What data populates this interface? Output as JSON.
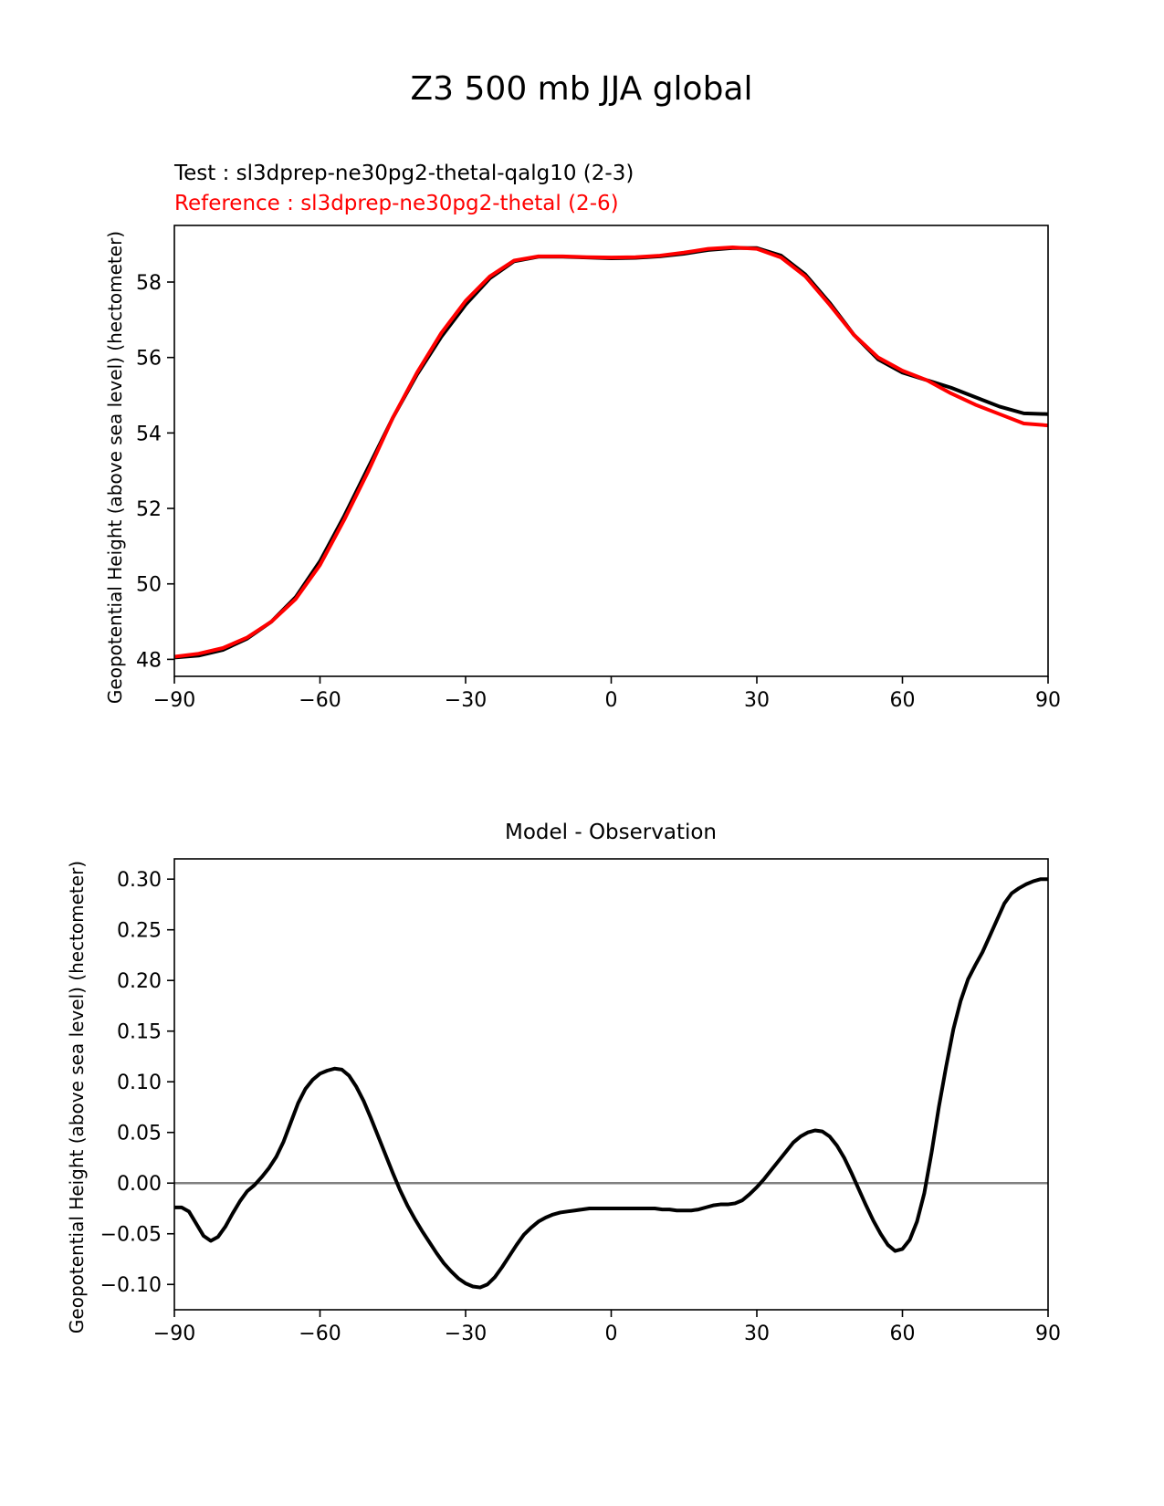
{
  "figure_title": "Z3 500 mb JJA global",
  "chart_data": [
    {
      "type": "line",
      "test_label": "Test : sl3dprep-ne30pg2-thetal-qalg10 (2-3)",
      "reference_label": "Reference : sl3dprep-ne30pg2-thetal (2-6)",
      "xlabel": "",
      "ylabel": "Geopotential Height (above sea level) (hectometer)",
      "xlim": [
        -90,
        90
      ],
      "ylim": [
        47.55,
        59.5
      ],
      "xticks": [
        -90,
        -60,
        -30,
        0,
        30,
        60,
        90
      ],
      "xtick_labels": [
        "−90",
        "−60",
        "−30",
        "0",
        "30",
        "60",
        "90"
      ],
      "yticks": [
        48,
        50,
        52,
        54,
        56,
        58
      ],
      "ytick_labels": [
        "48",
        "50",
        "52",
        "54",
        "56",
        "58"
      ],
      "grid": false,
      "series": [
        {
          "name": "Test",
          "color": "#000000",
          "x": [
            -90,
            -85,
            -80,
            -75,
            -70,
            -65,
            -60,
            -55,
            -50,
            -45,
            -40,
            -35,
            -30,
            -25,
            -20,
            -15,
            -10,
            -5,
            0,
            5,
            10,
            15,
            20,
            25,
            30,
            35,
            40,
            45,
            50,
            55,
            60,
            65,
            70,
            75,
            80,
            85,
            90
          ],
          "y": [
            48.05,
            48.1,
            48.25,
            48.55,
            49.0,
            49.65,
            50.6,
            51.8,
            53.1,
            54.4,
            55.55,
            56.55,
            57.4,
            58.1,
            58.55,
            58.67,
            58.67,
            58.65,
            58.63,
            58.64,
            58.68,
            58.75,
            58.85,
            58.9,
            58.9,
            58.7,
            58.2,
            57.45,
            56.6,
            55.95,
            55.6,
            55.4,
            55.2,
            54.95,
            54.7,
            54.52,
            54.5
          ]
        },
        {
          "name": "Reference",
          "color": "#ff0000",
          "x": [
            -90,
            -85,
            -80,
            -75,
            -70,
            -65,
            -60,
            -55,
            -50,
            -45,
            -40,
            -35,
            -30,
            -25,
            -20,
            -15,
            -10,
            -5,
            0,
            5,
            10,
            15,
            20,
            25,
            30,
            35,
            40,
            45,
            50,
            55,
            60,
            65,
            70,
            75,
            80,
            85,
            90
          ],
          "y": [
            48.07,
            48.15,
            48.3,
            48.58,
            49.0,
            49.6,
            50.5,
            51.7,
            53.0,
            54.4,
            55.6,
            56.65,
            57.5,
            58.15,
            58.57,
            58.68,
            58.68,
            58.66,
            58.65,
            58.66,
            58.7,
            58.78,
            58.88,
            58.92,
            58.88,
            58.65,
            58.15,
            57.4,
            56.6,
            56.0,
            55.65,
            55.4,
            55.05,
            54.75,
            54.5,
            54.25,
            54.2
          ]
        }
      ]
    },
    {
      "type": "line",
      "title": "Model - Observation",
      "xlabel": "",
      "ylabel": "Geopotential Height (above sea level) (hectometer)",
      "xlim": [
        -90,
        90
      ],
      "ylim": [
        -0.125,
        0.32
      ],
      "xticks": [
        -90,
        -60,
        -30,
        0,
        30,
        60,
        90
      ],
      "xtick_labels": [
        "−90",
        "−60",
        "−30",
        "0",
        "30",
        "60",
        "90"
      ],
      "yticks": [
        -0.1,
        -0.05,
        0.0,
        0.05,
        0.1,
        0.15,
        0.2,
        0.25,
        0.3
      ],
      "ytick_labels": [
        "−0.10",
        "−0.05",
        "0.00",
        "0.05",
        "0.10",
        "0.15",
        "0.20",
        "0.25",
        "0.30"
      ],
      "zero_line_color": "#808080",
      "grid": false,
      "series": [
        {
          "name": "",
          "color": "#000000",
          "x": [
            -90,
            -88.5,
            -87,
            -85.5,
            -84,
            -82.5,
            -81,
            -79.5,
            -78,
            -76.5,
            -75,
            -73.5,
            -72,
            -70.5,
            -69,
            -67.5,
            -66,
            -64.5,
            -63,
            -61.5,
            -60,
            -58.5,
            -57,
            -55.5,
            -54,
            -52.5,
            -51,
            -49.5,
            -48,
            -46.5,
            -45,
            -43.5,
            -42,
            -40.5,
            -39,
            -37.5,
            -36,
            -34.5,
            -33,
            -31.5,
            -30,
            -28.5,
            -27,
            -25.5,
            -24,
            -22.5,
            -21,
            -19.5,
            -18,
            -16.5,
            -15,
            -13.5,
            -12,
            -10.5,
            -9,
            -7.5,
            -6,
            -4.5,
            -3,
            -1.5,
            0,
            1.5,
            3,
            4.5,
            6,
            7.5,
            9,
            10.5,
            12,
            13.5,
            15,
            16.5,
            18,
            19.5,
            21,
            22.5,
            24,
            25.5,
            27,
            28.5,
            30,
            31.5,
            33,
            34.5,
            36,
            37.5,
            39,
            40.5,
            42,
            43.5,
            45,
            46.5,
            48,
            49.5,
            51,
            52.5,
            54,
            55.5,
            57,
            58.5,
            60,
            61.5,
            63,
            64.5,
            66,
            67.5,
            69,
            70.5,
            72,
            73.5,
            75,
            76.5,
            78,
            79.5,
            81,
            82.5,
            84,
            85.5,
            87,
            88.5,
            90
          ],
          "y": [
            -0.024,
            -0.024,
            -0.028,
            -0.04,
            -0.052,
            -0.057,
            -0.053,
            -0.043,
            -0.03,
            -0.018,
            -0.008,
            -0.002,
            0.006,
            0.015,
            0.026,
            0.041,
            0.06,
            0.079,
            0.093,
            0.102,
            0.108,
            0.111,
            0.113,
            0.112,
            0.106,
            0.095,
            0.081,
            0.064,
            0.046,
            0.028,
            0.01,
            -0.007,
            -0.022,
            -0.035,
            -0.047,
            -0.058,
            -0.069,
            -0.079,
            -0.087,
            -0.094,
            -0.099,
            -0.102,
            -0.103,
            -0.1,
            -0.093,
            -0.083,
            -0.072,
            -0.061,
            -0.051,
            -0.044,
            -0.038,
            -0.034,
            -0.031,
            -0.029,
            -0.028,
            -0.027,
            -0.026,
            -0.025,
            -0.025,
            -0.025,
            -0.025,
            -0.025,
            -0.025,
            -0.025,
            -0.025,
            -0.025,
            -0.025,
            -0.026,
            -0.026,
            -0.027,
            -0.027,
            -0.027,
            -0.026,
            -0.024,
            -0.022,
            -0.021,
            -0.021,
            -0.02,
            -0.017,
            -0.011,
            -0.004,
            0.004,
            0.013,
            0.022,
            0.031,
            0.04,
            0.046,
            0.05,
            0.052,
            0.051,
            0.046,
            0.037,
            0.025,
            0.01,
            -0.006,
            -0.022,
            -0.037,
            -0.05,
            -0.061,
            -0.067,
            -0.065,
            -0.056,
            -0.038,
            -0.01,
            0.03,
            0.075,
            0.115,
            0.152,
            0.18,
            0.201,
            0.215,
            0.228,
            0.244,
            0.26,
            0.276,
            0.286,
            0.291,
            0.295,
            0.298,
            0.3,
            0.3
          ]
        }
      ]
    }
  ]
}
